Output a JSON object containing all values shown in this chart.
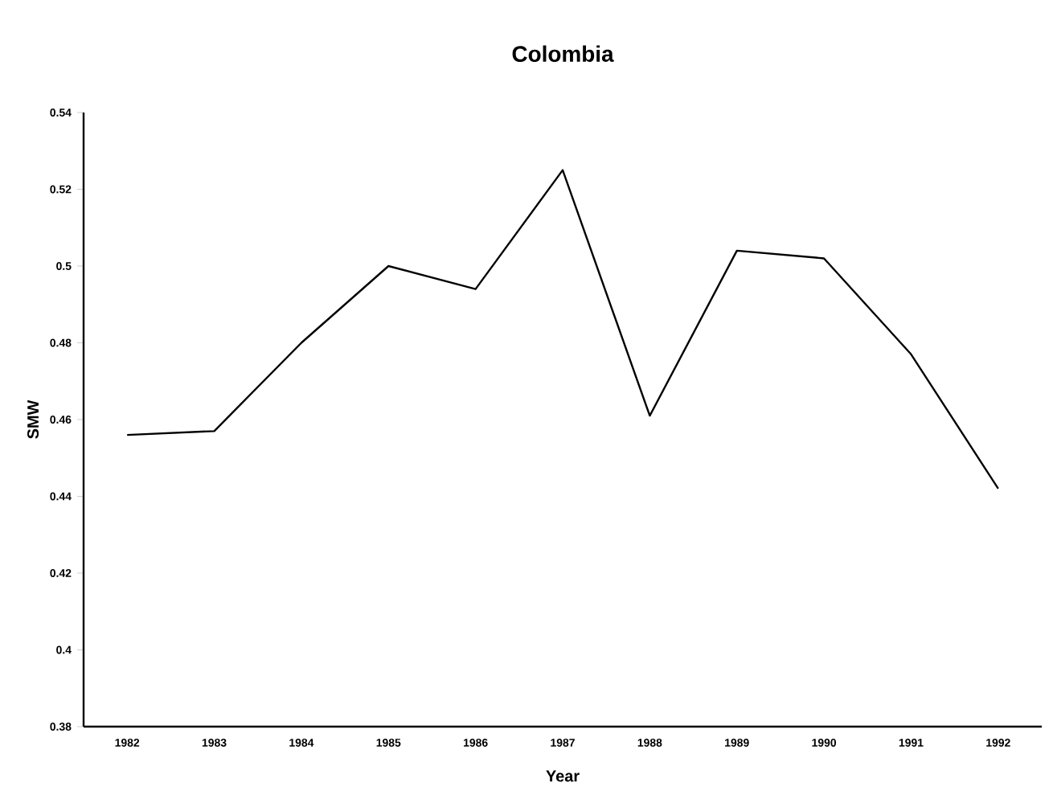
{
  "chart_data": {
    "type": "line",
    "title": "Colombia",
    "xlabel": "Year",
    "ylabel": "SMW",
    "categories": [
      "1982",
      "1983",
      "1984",
      "1985",
      "1986",
      "1987",
      "1988",
      "1989",
      "1990",
      "1991",
      "1992"
    ],
    "values": [
      0.456,
      0.457,
      0.48,
      0.5,
      0.494,
      0.525,
      0.461,
      0.504,
      0.502,
      0.477,
      0.442
    ],
    "color": "#000000",
    "ylim": [
      0.38,
      0.54
    ],
    "yticks": [
      0.38,
      0.4,
      0.42,
      0.44,
      0.46,
      0.48,
      0.5,
      0.52,
      0.54
    ],
    "grid": false,
    "marker": "none",
    "line_style": "solid"
  }
}
